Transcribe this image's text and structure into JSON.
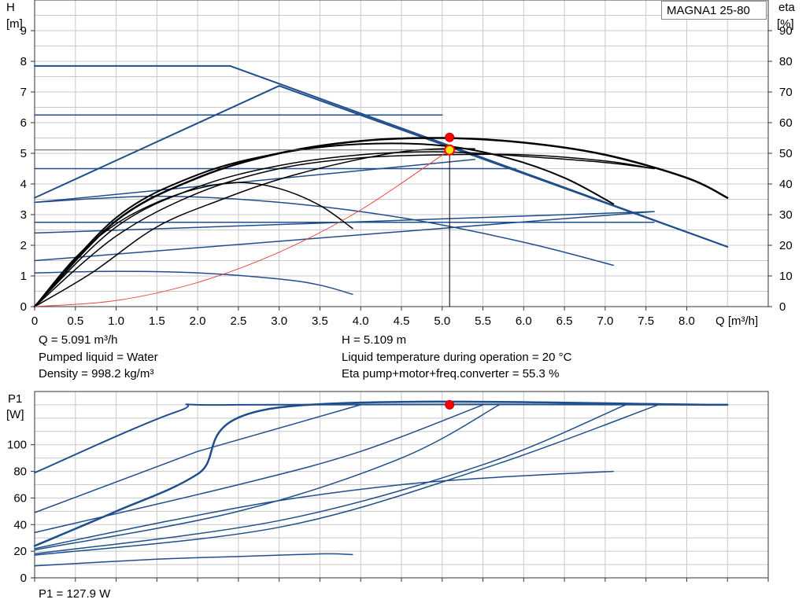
{
  "model_label": "MAGNA1 25-80",
  "info": {
    "q": "Q = 5.091 m³/h",
    "pumped_liquid": "Pumped liquid = Water",
    "density": "Density = 998.2 kg/m³",
    "h": "H = 5.109 m",
    "liquid_temperature": "Liquid temperature during operation = 20 °C",
    "eta_total": "Eta pump+motor+freq.converter = 55.3 %",
    "p1": "P1 = 127.9 W"
  },
  "colors": {
    "curve": "#1f4e8c",
    "efficiency": "#000000",
    "system": "#e8453c",
    "duty_point": "#ff0000",
    "operating_point": "#ffe600",
    "grid": "#c8c8c8"
  },
  "chart_data": [
    {
      "type": "line",
      "xlabel": "Q [m³/h]",
      "ylabel": "H\n[m]",
      "y2label": "eta\n[%]",
      "xlim": [
        0,
        9
      ],
      "ylim": [
        0,
        10
      ],
      "y2lim": [
        0,
        100
      ],
      "x_ticks": [
        0,
        0.5,
        1.0,
        1.5,
        2.0,
        2.5,
        3.0,
        3.5,
        4.0,
        4.5,
        5.0,
        5.5,
        6.0,
        6.5,
        7.0,
        7.5,
        8.0
      ],
      "x_tick_labels": [
        "0",
        "0.5",
        "1.0",
        "1.5",
        "2.0",
        "2.5",
        "3.0",
        "3.5",
        "4.0",
        "4.5",
        "5.0",
        "5.5",
        "6.0",
        "6.5",
        "7.0",
        "7.5",
        "8.0"
      ],
      "y_ticks": [
        0,
        1,
        2,
        3,
        4,
        5,
        6,
        7,
        8,
        9
      ],
      "y2_ticks": [
        0,
        10,
        20,
        30,
        40,
        50,
        60,
        70,
        80,
        90
      ],
      "grid": true,
      "series": [
        {
          "style": "head",
          "width": 2,
          "x": [
            0,
            2.4,
            8.5
          ],
          "y": [
            7.85,
            7.85,
            1.95
          ]
        },
        {
          "style": "head",
          "width": 2,
          "x": [
            0,
            3.0,
            8.5
          ],
          "y": [
            3.55,
            7.2,
            1.95
          ]
        },
        {
          "style": "head",
          "width": 1.5,
          "x": [
            0,
            5.0
          ],
          "y": [
            6.25,
            6.25
          ]
        },
        {
          "style": "head",
          "width": 1.5,
          "x": [
            0,
            5.9
          ],
          "y": [
            4.5,
            4.5
          ]
        },
        {
          "style": "head",
          "width": 1.5,
          "x": [
            0,
            7.6
          ],
          "y": [
            2.75,
            2.75
          ]
        },
        {
          "style": "head",
          "width": 1.5,
          "x": [
            0,
            5.4
          ],
          "y": [
            3.4,
            4.8
          ]
        },
        {
          "style": "head",
          "width": 1.5,
          "x": [
            0,
            7.6
          ],
          "y": [
            2.4,
            3.1
          ]
        },
        {
          "style": "head",
          "width": 1.5,
          "x": [
            0,
            7.6
          ],
          "y": [
            1.5,
            3.1
          ]
        },
        {
          "style": "head",
          "width": 1.5,
          "x": [
            0,
            1.0,
            2.0,
            3.0,
            3.5,
            3.9
          ],
          "y": [
            1.1,
            1.15,
            1.1,
            0.9,
            0.7,
            0.4
          ]
        },
        {
          "style": "head",
          "width": 1.5,
          "x": [
            0,
            1.5,
            3.0,
            4.5,
            6.0,
            7.1
          ],
          "y": [
            3.4,
            3.6,
            3.4,
            2.9,
            2.1,
            1.35
          ]
        },
        {
          "style": "eta",
          "width": 2.5,
          "x": [
            0,
            1.0,
            2.0,
            3.0,
            4.0,
            5.0,
            6.0,
            7.0,
            8.0,
            8.5
          ],
          "y": [
            0,
            2.8,
            4.2,
            5.0,
            5.4,
            5.5,
            5.35,
            4.95,
            4.2,
            3.55
          ]
        },
        {
          "style": "eta",
          "width": 2,
          "x": [
            0,
            1.0,
            2.0,
            3.0,
            4.0,
            5.0,
            5.8,
            6.5,
            7.1
          ],
          "y": [
            0,
            2.9,
            4.3,
            5.0,
            5.3,
            5.25,
            4.85,
            4.2,
            3.35
          ]
        },
        {
          "style": "eta",
          "width": 1.5,
          "x": [
            0,
            1.0,
            2.0,
            3.0,
            4.0,
            5.0,
            6.0,
            7.0,
            7.6
          ],
          "y": [
            0,
            2.6,
            3.9,
            4.6,
            4.95,
            5.05,
            4.9,
            4.7,
            4.5
          ]
        },
        {
          "style": "eta",
          "width": 1.5,
          "x": [
            0,
            1.0,
            2.0,
            3.0,
            4.0,
            5.0,
            6.0,
            7.0,
            7.6
          ],
          "y": [
            0,
            2.3,
            3.7,
            4.5,
            4.85,
            4.95,
            4.95,
            4.75,
            4.5
          ]
        },
        {
          "style": "eta",
          "width": 1.5,
          "x": [
            0,
            0.5,
            1.0,
            1.5,
            2.0,
            2.5,
            3.0,
            3.5,
            3.9
          ],
          "y": [
            0,
            1.6,
            2.7,
            3.4,
            3.85,
            4.05,
            3.85,
            3.3,
            2.55
          ]
        },
        {
          "style": "eta",
          "width": 1.5,
          "x": [
            0,
            0.7,
            1.5,
            2.3,
            3.0,
            3.8,
            4.5,
            5.0,
            5.4
          ],
          "y": [
            0,
            1.1,
            2.6,
            3.5,
            4.15,
            4.7,
            5.05,
            5.15,
            5.15
          ]
        },
        {
          "style": "system",
          "width": 1,
          "x": [
            0,
            1.0,
            2.0,
            3.0,
            4.0,
            5.091
          ],
          "y": [
            0,
            0.197,
            0.788,
            1.774,
            3.154,
            5.109
          ]
        }
      ],
      "duty_point": {
        "x": 5.091,
        "y": 5.52
      },
      "operating_point": {
        "x": 5.091,
        "y": 5.109
      }
    },
    {
      "type": "line",
      "ylabel": "P1\n[W]",
      "xlim": [
        0,
        9
      ],
      "ylim": [
        0,
        140
      ],
      "y_ticks": [
        0,
        20,
        40,
        60,
        80,
        100
      ],
      "grid": true,
      "series": [
        {
          "style": "power",
          "width": 2,
          "x": [
            0,
            1.75,
            2.5,
            8.5
          ],
          "y": [
            79,
            125,
            130,
            130
          ]
        },
        {
          "style": "power",
          "width": 2.5,
          "x": [
            0,
            1.0,
            2.0,
            3.0,
            8.5
          ],
          "y": [
            24,
            50,
            78,
            128,
            130
          ]
        },
        {
          "style": "power",
          "width": 1.5,
          "x": [
            0,
            2.0,
            4.0
          ],
          "y": [
            49,
            95,
            130
          ]
        },
        {
          "style": "power",
          "width": 1.5,
          "x": [
            0,
            2.5,
            4.0,
            5.5
          ],
          "y": [
            34,
            70,
            95,
            130
          ]
        },
        {
          "style": "power",
          "width": 1.5,
          "x": [
            0,
            2.5,
            4.5,
            5.7
          ],
          "y": [
            21,
            50,
            90,
            130
          ]
        },
        {
          "style": "power",
          "width": 1.5,
          "x": [
            0,
            3.0,
            5.5,
            7.25
          ],
          "y": [
            18,
            43,
            85,
            130
          ]
        },
        {
          "style": "power",
          "width": 1.5,
          "x": [
            0,
            3.0,
            5.5,
            7.65
          ],
          "y": [
            17,
            38,
            82,
            130
          ]
        },
        {
          "style": "power",
          "width": 1.5,
          "x": [
            0,
            1.5,
            3.0,
            4.5,
            5.8,
            7.1
          ],
          "y": [
            22,
            41,
            58,
            70,
            76,
            80
          ]
        },
        {
          "style": "power",
          "width": 1.5,
          "x": [
            0,
            1.5,
            2.5,
            3.5,
            3.9
          ],
          "y": [
            9,
            14,
            16,
            18,
            17.5
          ]
        }
      ],
      "duty_point": {
        "x": 5.091,
        "y": 130
      }
    }
  ]
}
